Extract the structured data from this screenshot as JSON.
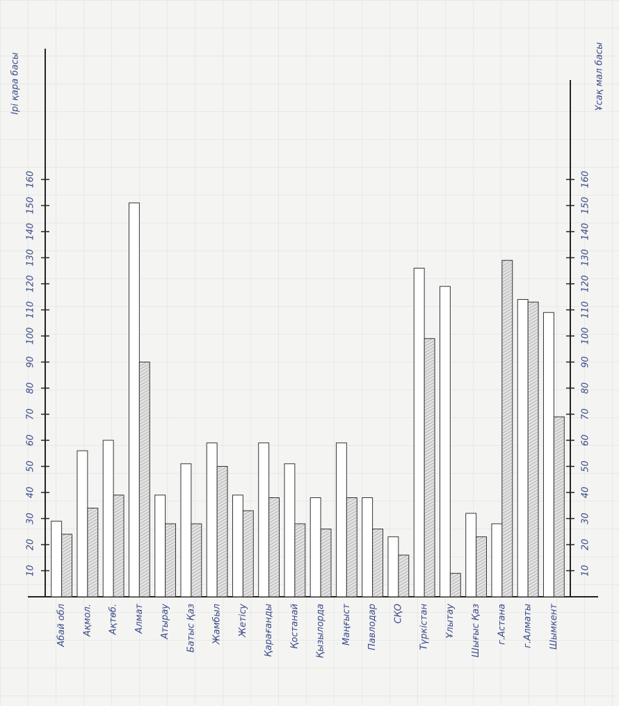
{
  "chart_data": {
    "type": "bar",
    "y_label": "Ірі қара басы",
    "y2_label": "Ұсақ мал басы",
    "categories": [
      "Абай обл",
      "Ақмол.",
      "Ақтөб.",
      "Алмат",
      "Атырау",
      "Батыс Қаз",
      "Жамбыл",
      "Жетісу",
      "Қарағанды",
      "Қостанай",
      "Қызылорда",
      "Маңғыст",
      "Павлодар",
      "СҚО",
      "Түркістан",
      "Ұлытау",
      "Шығыс Қаз",
      "г.Астана",
      "г.Алматы",
      "Шымкент"
    ],
    "series": [
      {
        "color": "#ffffff",
        "values": [
          29,
          56,
          60,
          151,
          39,
          51,
          59,
          39,
          59,
          51,
          38,
          59,
          38,
          23,
          126,
          119,
          32,
          28,
          114,
          109
        ]
      },
      {
        "color": "#c8c8c8",
        "axis": "y2",
        "values": [
          24,
          34,
          39,
          90,
          28,
          28,
          50,
          33,
          38,
          28,
          26,
          38,
          26,
          16,
          99,
          9,
          23,
          129,
          113,
          69
        ]
      }
    ],
    "ylim": [
      0,
      180
    ],
    "yticks": [
      10,
      20,
      30,
      40,
      50,
      60,
      70,
      80,
      90,
      100,
      110,
      120,
      130,
      140,
      150,
      160
    ],
    "y2lim": [
      0,
      180
    ],
    "y2ticks": [
      10,
      20,
      30,
      40,
      50,
      60,
      70,
      80,
      90,
      100,
      110,
      120,
      130,
      140,
      150,
      160
    ]
  }
}
